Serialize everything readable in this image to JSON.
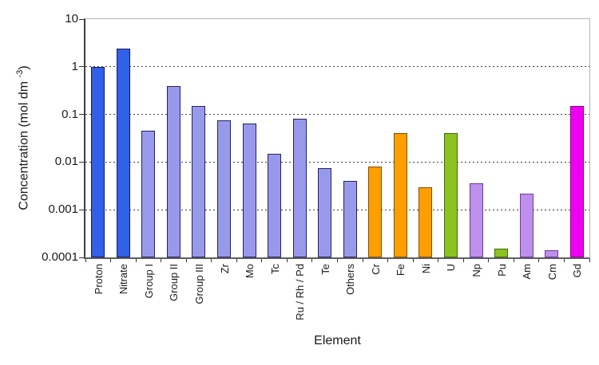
{
  "chart_data": {
    "type": "bar",
    "title": "",
    "xlabel": "Element",
    "ylabel": "Concentration (mol dm -3)",
    "ylabel_prefix": "Concentration (mol dm ",
    "ylabel_superscript": "-3",
    "ylabel_suffix": ")",
    "yscale": "log",
    "ylim": [
      0.0001,
      10
    ],
    "grid": "horizontal-dashed",
    "grid_values": [
      1,
      0.1,
      0.01,
      0.001
    ],
    "legend": "none",
    "yticks": [
      {
        "label": "10",
        "value": 10
      },
      {
        "label": "1",
        "value": 1
      },
      {
        "label": "0.1",
        "value": 0.1
      },
      {
        "label": "0.01",
        "value": 0.01
      },
      {
        "label": "0.001",
        "value": 0.001
      },
      {
        "label": "0.0001",
        "value": 0.0001
      }
    ],
    "categories": [
      "Proton",
      "Nitrate",
      "Group I",
      "Group II",
      "Group III",
      "Zr",
      "Mo",
      "Tc",
      "Ru / Rh / Pd",
      "Te",
      "Others",
      "Cr",
      "Fe",
      "Ni",
      "U",
      "Np",
      "Pu",
      "Am",
      "Cm",
      "Gd"
    ],
    "values": [
      1.0,
      2.4,
      0.045,
      0.4,
      0.15,
      0.075,
      0.065,
      0.015,
      0.08,
      0.0075,
      0.004,
      0.008,
      0.04,
      0.003,
      0.04,
      0.0036,
      0.00015,
      0.0022,
      0.00014,
      0.15
    ],
    "bar_colors": [
      "#3061e8",
      "#3061e8",
      "#9999ec",
      "#9999ec",
      "#9999ec",
      "#9999ec",
      "#9999ec",
      "#9999ec",
      "#9999ec",
      "#9999ec",
      "#9999ec",
      "#ff9e00",
      "#ff9e00",
      "#ff9e00",
      "#8cc220",
      "#be90ec",
      "#8cc220",
      "#be90ec",
      "#be90ec",
      "#f000f0"
    ],
    "bar_border_colors": [
      "#1a1a5e",
      "#1a1a5e",
      "#23235e",
      "#23235e",
      "#23235e",
      "#23235e",
      "#23235e",
      "#23235e",
      "#23235e",
      "#23235e",
      "#23235e",
      "#7a5200",
      "#7a5200",
      "#7a5200",
      "#3f6b00",
      "#6a3aa0",
      "#3f6b00",
      "#6a3aa0",
      "#6a3aa0",
      "#8a008a"
    ],
    "color_legend_semantics": {
      "#3061e8": "bulk solution species (Proton, Nitrate)",
      "#9999ec": "fission products / groups",
      "#ff9e00": "corrosion products (Cr, Fe, Ni)",
      "#8cc220": "U, Pu",
      "#be90ec": "minor actinides (Np, Am, Cm)",
      "#f000f0": "Gd"
    }
  }
}
